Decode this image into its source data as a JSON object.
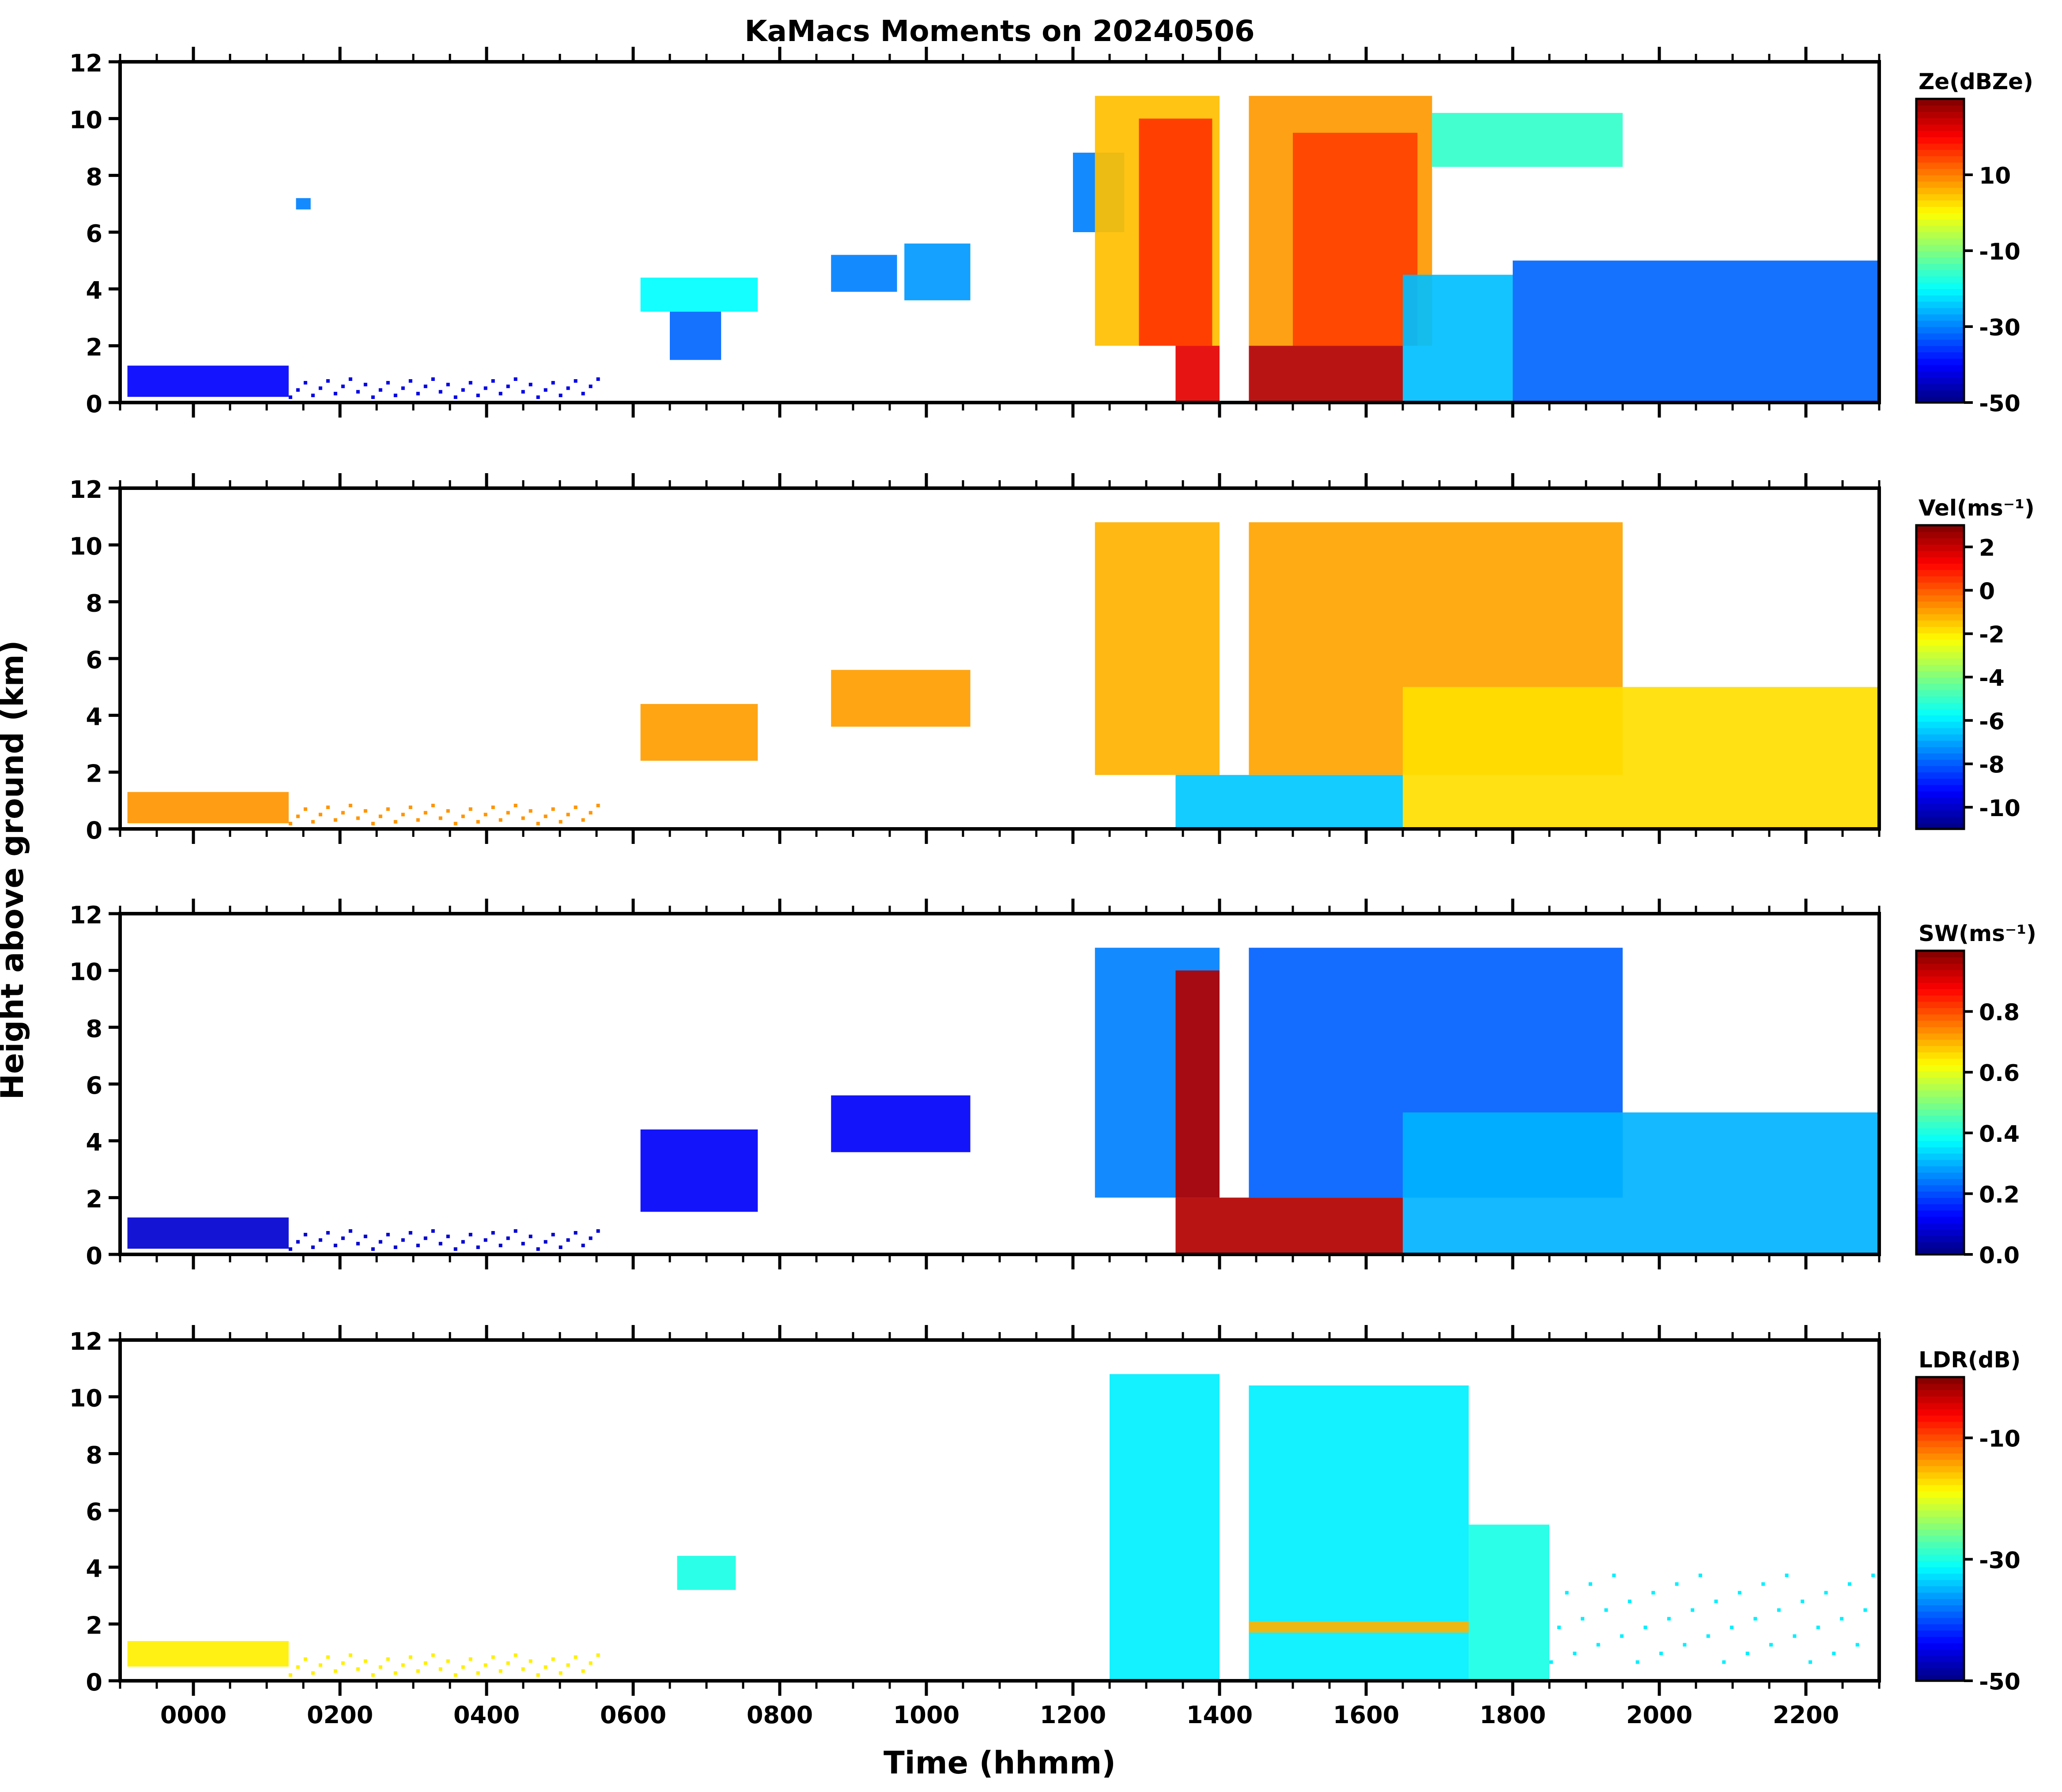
{
  "figure": {
    "title": "KaMacs Moments on 20240506",
    "xlabel": "Time (hhmm)",
    "ylabel": "Height above ground (km)"
  },
  "chart_data": [
    {
      "type": "heatmap",
      "variable": "Ze",
      "colorbar_label": "Ze(dBZe)",
      "colorbar_range": [
        -50,
        30
      ],
      "colorbar_ticks": [
        -50,
        -30,
        -10,
        10
      ],
      "colormap": "jet",
      "xlim": [
        -100,
        2300
      ],
      "ylim": [
        0,
        12
      ],
      "regions": [
        {
          "t0": -90,
          "t1": 130,
          "h0": 0.2,
          "h1": 1.3,
          "v": -40,
          "sparse": false
        },
        {
          "t0": 130,
          "t1": 560,
          "h0": 0.1,
          "h1": 1.1,
          "v": -42,
          "sparse": true
        },
        {
          "t0": 140,
          "t1": 160,
          "h0": 6.8,
          "h1": 7.2,
          "v": -30,
          "sparse": false
        },
        {
          "t0": 610,
          "t1": 770,
          "h0": 3.2,
          "h1": 4.4,
          "v": -20,
          "sparse": false
        },
        {
          "t0": 650,
          "t1": 720,
          "h0": 1.5,
          "h1": 3.2,
          "v": -32,
          "sparse": false
        },
        {
          "t0": 870,
          "t1": 960,
          "h0": 3.9,
          "h1": 5.2,
          "v": -30,
          "sparse": false
        },
        {
          "t0": 970,
          "t1": 1060,
          "h0": 3.6,
          "h1": 5.6,
          "v": -28,
          "sparse": false
        },
        {
          "t0": 1200,
          "t1": 1270,
          "h0": 6.0,
          "h1": 8.8,
          "v": -30,
          "sparse": false
        },
        {
          "t0": 1230,
          "t1": 1400,
          "h0": 2.0,
          "h1": 10.8,
          "v": 5,
          "sparse": false
        },
        {
          "t0": 1290,
          "t1": 1390,
          "h0": 2.0,
          "h1": 10.0,
          "v": 16,
          "sparse": false
        },
        {
          "t0": 1340,
          "t1": 1400,
          "h0": 0.0,
          "h1": 2.0,
          "v": 22,
          "sparse": false
        },
        {
          "t0": 1440,
          "t1": 1690,
          "h0": 2.0,
          "h1": 10.8,
          "v": 8,
          "sparse": false
        },
        {
          "t0": 1500,
          "t1": 1670,
          "h0": 2.0,
          "h1": 9.5,
          "v": 15,
          "sparse": false
        },
        {
          "t0": 1440,
          "t1": 1650,
          "h0": 0.0,
          "h1": 2.0,
          "v": 26,
          "sparse": false
        },
        {
          "t0": 1690,
          "t1": 1950,
          "h0": 8.3,
          "h1": 10.2,
          "v": -16,
          "sparse": false
        },
        {
          "t0": 1650,
          "t1": 1800,
          "h0": 0.0,
          "h1": 4.5,
          "v": -25,
          "sparse": false
        },
        {
          "t0": 1800,
          "t1": 2300,
          "h0": 0.0,
          "h1": 5.0,
          "v": -32,
          "sparse": false
        }
      ]
    },
    {
      "type": "heatmap",
      "variable": "Vel",
      "colorbar_label": "Vel(ms⁻¹)",
      "colorbar_range": [
        -11,
        3
      ],
      "colorbar_ticks": [
        -10,
        -8,
        -6,
        -4,
        -2,
        0,
        2
      ],
      "colormap": "jet",
      "xlim": [
        -100,
        2300
      ],
      "ylim": [
        0,
        12
      ],
      "regions": [
        {
          "t0": -90,
          "t1": 130,
          "h0": 0.2,
          "h1": 1.3,
          "v": -0.8,
          "sparse": false
        },
        {
          "t0": 130,
          "t1": 560,
          "h0": 0.1,
          "h1": 1.1,
          "v": -0.8,
          "sparse": true
        },
        {
          "t0": 610,
          "t1": 770,
          "h0": 2.4,
          "h1": 4.4,
          "v": -0.9,
          "sparse": false
        },
        {
          "t0": 870,
          "t1": 1060,
          "h0": 3.6,
          "h1": 5.6,
          "v": -0.9,
          "sparse": false
        },
        {
          "t0": 1230,
          "t1": 1400,
          "h0": 1.9,
          "h1": 10.8,
          "v": -1.2,
          "sparse": false
        },
        {
          "t0": 1440,
          "t1": 1950,
          "h0": 1.9,
          "h1": 10.8,
          "v": -1.0,
          "sparse": false
        },
        {
          "t0": 1340,
          "t1": 1650,
          "h0": 0.0,
          "h1": 1.9,
          "v": -6.5,
          "sparse": false
        },
        {
          "t0": 1650,
          "t1": 2300,
          "h0": 0.0,
          "h1": 5.0,
          "v": -1.8,
          "sparse": false
        }
      ]
    },
    {
      "type": "heatmap",
      "variable": "SW",
      "colorbar_label": "SW(ms⁻¹)",
      "colorbar_range": [
        0.0,
        1.0
      ],
      "colorbar_ticks": [
        0.0,
        0.2,
        0.4,
        0.6,
        0.8
      ],
      "colormap": "jet",
      "xlim": [
        -100,
        2300
      ],
      "ylim": [
        0,
        12
      ],
      "regions": [
        {
          "t0": -90,
          "t1": 130,
          "h0": 0.2,
          "h1": 1.3,
          "v": 0.08,
          "sparse": false
        },
        {
          "t0": 130,
          "t1": 560,
          "h0": 0.1,
          "h1": 1.1,
          "v": 0.08,
          "sparse": true
        },
        {
          "t0": 610,
          "t1": 770,
          "h0": 1.5,
          "h1": 4.4,
          "v": 0.12,
          "sparse": false
        },
        {
          "t0": 870,
          "t1": 1060,
          "h0": 3.6,
          "h1": 5.6,
          "v": 0.12,
          "sparse": false
        },
        {
          "t0": 1230,
          "t1": 1400,
          "h0": 2.0,
          "h1": 10.8,
          "v": 0.25,
          "sparse": false
        },
        {
          "t0": 1340,
          "t1": 1400,
          "h0": 2.0,
          "h1": 10.0,
          "v": 0.95,
          "sparse": false
        },
        {
          "t0": 1440,
          "t1": 1950,
          "h0": 2.0,
          "h1": 10.8,
          "v": 0.22,
          "sparse": false
        },
        {
          "t0": 1340,
          "t1": 1650,
          "h0": 0.0,
          "h1": 2.0,
          "v": 0.95,
          "sparse": false
        },
        {
          "t0": 1650,
          "t1": 2300,
          "h0": 0.0,
          "h1": 5.0,
          "v": 0.3,
          "sparse": false
        }
      ]
    },
    {
      "type": "heatmap",
      "variable": "LDR",
      "colorbar_label": "LDR(dB)",
      "colorbar_range": [
        -50,
        0
      ],
      "colorbar_ticks": [
        -50,
        -30,
        -10
      ],
      "colormap": "jet",
      "xlim": [
        -100,
        2300
      ],
      "ylim": [
        0,
        12
      ],
      "regions": [
        {
          "t0": -90,
          "t1": 130,
          "h0": 0.5,
          "h1": 1.4,
          "v": -18,
          "sparse": false
        },
        {
          "t0": 130,
          "t1": 560,
          "h0": 0.1,
          "h1": 1.2,
          "v": -18,
          "sparse": true
        },
        {
          "t0": 660,
          "t1": 740,
          "h0": 3.2,
          "h1": 4.4,
          "v": -30,
          "sparse": false
        },
        {
          "t0": 1250,
          "t1": 1400,
          "h0": 0.0,
          "h1": 10.8,
          "v": -32,
          "sparse": false
        },
        {
          "t0": 1440,
          "t1": 1740,
          "h0": 0.0,
          "h1": 10.4,
          "v": -32,
          "sparse": false
        },
        {
          "t0": 1440,
          "t1": 1740,
          "h0": 1.7,
          "h1": 2.1,
          "v": -15,
          "sparse": false
        },
        {
          "t0": 1740,
          "t1": 1850,
          "h0": 0.0,
          "h1": 5.5,
          "v": -30,
          "sparse": false
        },
        {
          "t0": 1850,
          "t1": 2300,
          "h0": 0.0,
          "h1": 4.8,
          "v": -32,
          "sparse": true
        }
      ]
    }
  ]
}
